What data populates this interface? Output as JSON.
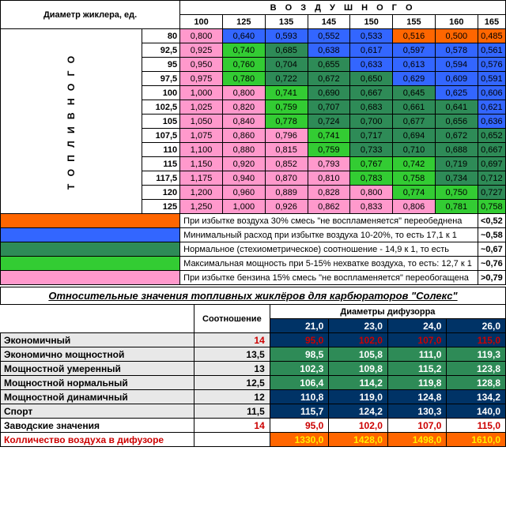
{
  "colors": {
    "orange": "#ff6600",
    "blue": "#3366ff",
    "teal": "#2e8b57",
    "green": "#33cc33",
    "pink": "#ff99cc",
    "dkblue": "#003366",
    "ltgray": "#e8e8e8",
    "red": "#cc0000",
    "white": "#ffffff"
  },
  "labels": {
    "corner": "Диаметр жиклера, ед.",
    "air": "В О З Д У Ш Н О Г О",
    "fuel": "Т О П Л И В Н О Г О"
  },
  "airCols": [
    "100",
    "125",
    "135",
    "145",
    "150",
    "155",
    "160",
    "165"
  ],
  "fuelRows": [
    "80",
    "92,5",
    "95",
    "97,5",
    "100",
    "102,5",
    "105",
    "107,5",
    "110",
    "115",
    "117,5",
    "120",
    "125"
  ],
  "cells": [
    {
      "r": 0,
      "c": 0,
      "v": "0,800",
      "k": "pink"
    },
    {
      "r": 0,
      "c": 1,
      "v": "0,640",
      "k": "blue"
    },
    {
      "r": 0,
      "c": 2,
      "v": "0,593",
      "k": "blue"
    },
    {
      "r": 0,
      "c": 3,
      "v": "0,552",
      "k": "blue"
    },
    {
      "r": 0,
      "c": 4,
      "v": "0,533",
      "k": "blue"
    },
    {
      "r": 0,
      "c": 5,
      "v": "0,516",
      "k": "orange"
    },
    {
      "r": 0,
      "c": 6,
      "v": "0,500",
      "k": "orange"
    },
    {
      "r": 0,
      "c": 7,
      "v": "0,485",
      "k": "orange"
    },
    {
      "r": 1,
      "c": 0,
      "v": "0,925",
      "k": "pink"
    },
    {
      "r": 1,
      "c": 1,
      "v": "0,740",
      "k": "green"
    },
    {
      "r": 1,
      "c": 2,
      "v": "0,685",
      "k": "teal"
    },
    {
      "r": 1,
      "c": 3,
      "v": "0,638",
      "k": "blue"
    },
    {
      "r": 1,
      "c": 4,
      "v": "0,617",
      "k": "blue"
    },
    {
      "r": 1,
      "c": 5,
      "v": "0,597",
      "k": "blue"
    },
    {
      "r": 1,
      "c": 6,
      "v": "0,578",
      "k": "blue"
    },
    {
      "r": 1,
      "c": 7,
      "v": "0,561",
      "k": "blue"
    },
    {
      "r": 2,
      "c": 0,
      "v": "0,950",
      "k": "pink"
    },
    {
      "r": 2,
      "c": 1,
      "v": "0,760",
      "k": "green"
    },
    {
      "r": 2,
      "c": 2,
      "v": "0,704",
      "k": "teal"
    },
    {
      "r": 2,
      "c": 3,
      "v": "0,655",
      "k": "teal"
    },
    {
      "r": 2,
      "c": 4,
      "v": "0,633",
      "k": "blue"
    },
    {
      "r": 2,
      "c": 5,
      "v": "0,613",
      "k": "blue"
    },
    {
      "r": 2,
      "c": 6,
      "v": "0,594",
      "k": "blue"
    },
    {
      "r": 2,
      "c": 7,
      "v": "0,576",
      "k": "blue"
    },
    {
      "r": 3,
      "c": 0,
      "v": "0,975",
      "k": "pink"
    },
    {
      "r": 3,
      "c": 1,
      "v": "0,780",
      "k": "green"
    },
    {
      "r": 3,
      "c": 2,
      "v": "0,722",
      "k": "teal"
    },
    {
      "r": 3,
      "c": 3,
      "v": "0,672",
      "k": "teal"
    },
    {
      "r": 3,
      "c": 4,
      "v": "0,650",
      "k": "teal"
    },
    {
      "r": 3,
      "c": 5,
      "v": "0,629",
      "k": "blue"
    },
    {
      "r": 3,
      "c": 6,
      "v": "0,609",
      "k": "blue"
    },
    {
      "r": 3,
      "c": 7,
      "v": "0,591",
      "k": "blue"
    },
    {
      "r": 4,
      "c": 0,
      "v": "1,000",
      "k": "pink"
    },
    {
      "r": 4,
      "c": 1,
      "v": "0,800",
      "k": "pink"
    },
    {
      "r": 4,
      "c": 2,
      "v": "0,741",
      "k": "green"
    },
    {
      "r": 4,
      "c": 3,
      "v": "0,690",
      "k": "teal"
    },
    {
      "r": 4,
      "c": 4,
      "v": "0,667",
      "k": "teal"
    },
    {
      "r": 4,
      "c": 5,
      "v": "0,645",
      "k": "teal"
    },
    {
      "r": 4,
      "c": 6,
      "v": "0,625",
      "k": "blue"
    },
    {
      "r": 4,
      "c": 7,
      "v": "0,606",
      "k": "blue"
    },
    {
      "r": 5,
      "c": 0,
      "v": "1,025",
      "k": "pink"
    },
    {
      "r": 5,
      "c": 1,
      "v": "0,820",
      "k": "pink"
    },
    {
      "r": 5,
      "c": 2,
      "v": "0,759",
      "k": "green"
    },
    {
      "r": 5,
      "c": 3,
      "v": "0,707",
      "k": "teal"
    },
    {
      "r": 5,
      "c": 4,
      "v": "0,683",
      "k": "teal"
    },
    {
      "r": 5,
      "c": 5,
      "v": "0,661",
      "k": "teal"
    },
    {
      "r": 5,
      "c": 6,
      "v": "0,641",
      "k": "teal"
    },
    {
      "r": 5,
      "c": 7,
      "v": "0,621",
      "k": "blue"
    },
    {
      "r": 6,
      "c": 0,
      "v": "1,050",
      "k": "pink"
    },
    {
      "r": 6,
      "c": 1,
      "v": "0,840",
      "k": "pink"
    },
    {
      "r": 6,
      "c": 2,
      "v": "0,778",
      "k": "green"
    },
    {
      "r": 6,
      "c": 3,
      "v": "0,724",
      "k": "teal"
    },
    {
      "r": 6,
      "c": 4,
      "v": "0,700",
      "k": "teal"
    },
    {
      "r": 6,
      "c": 5,
      "v": "0,677",
      "k": "teal"
    },
    {
      "r": 6,
      "c": 6,
      "v": "0,656",
      "k": "teal"
    },
    {
      "r": 6,
      "c": 7,
      "v": "0,636",
      "k": "blue"
    },
    {
      "r": 7,
      "c": 0,
      "v": "1,075",
      "k": "pink"
    },
    {
      "r": 7,
      "c": 1,
      "v": "0,860",
      "k": "pink"
    },
    {
      "r": 7,
      "c": 2,
      "v": "0,796",
      "k": "pink"
    },
    {
      "r": 7,
      "c": 3,
      "v": "0,741",
      "k": "green"
    },
    {
      "r": 7,
      "c": 4,
      "v": "0,717",
      "k": "teal"
    },
    {
      "r": 7,
      "c": 5,
      "v": "0,694",
      "k": "teal"
    },
    {
      "r": 7,
      "c": 6,
      "v": "0,672",
      "k": "teal"
    },
    {
      "r": 7,
      "c": 7,
      "v": "0,652",
      "k": "teal"
    },
    {
      "r": 8,
      "c": 0,
      "v": "1,100",
      "k": "pink"
    },
    {
      "r": 8,
      "c": 1,
      "v": "0,880",
      "k": "pink"
    },
    {
      "r": 8,
      "c": 2,
      "v": "0,815",
      "k": "pink"
    },
    {
      "r": 8,
      "c": 3,
      "v": "0,759",
      "k": "green"
    },
    {
      "r": 8,
      "c": 4,
      "v": "0,733",
      "k": "teal"
    },
    {
      "r": 8,
      "c": 5,
      "v": "0,710",
      "k": "teal"
    },
    {
      "r": 8,
      "c": 6,
      "v": "0,688",
      "k": "teal"
    },
    {
      "r": 8,
      "c": 7,
      "v": "0,667",
      "k": "teal"
    },
    {
      "r": 9,
      "c": 0,
      "v": "1,150",
      "k": "pink"
    },
    {
      "r": 9,
      "c": 1,
      "v": "0,920",
      "k": "pink"
    },
    {
      "r": 9,
      "c": 2,
      "v": "0,852",
      "k": "pink"
    },
    {
      "r": 9,
      "c": 3,
      "v": "0,793",
      "k": "pink"
    },
    {
      "r": 9,
      "c": 4,
      "v": "0,767",
      "k": "green"
    },
    {
      "r": 9,
      "c": 5,
      "v": "0,742",
      "k": "green"
    },
    {
      "r": 9,
      "c": 6,
      "v": "0,719",
      "k": "teal"
    },
    {
      "r": 9,
      "c": 7,
      "v": "0,697",
      "k": "teal"
    },
    {
      "r": 10,
      "c": 0,
      "v": "1,175",
      "k": "pink"
    },
    {
      "r": 10,
      "c": 1,
      "v": "0,940",
      "k": "pink"
    },
    {
      "r": 10,
      "c": 2,
      "v": "0,870",
      "k": "pink"
    },
    {
      "r": 10,
      "c": 3,
      "v": "0,810",
      "k": "pink"
    },
    {
      "r": 10,
      "c": 4,
      "v": "0,783",
      "k": "green"
    },
    {
      "r": 10,
      "c": 5,
      "v": "0,758",
      "k": "green"
    },
    {
      "r": 10,
      "c": 6,
      "v": "0,734",
      "k": "teal"
    },
    {
      "r": 10,
      "c": 7,
      "v": "0,712",
      "k": "teal"
    },
    {
      "r": 11,
      "c": 0,
      "v": "1,200",
      "k": "pink"
    },
    {
      "r": 11,
      "c": 1,
      "v": "0,960",
      "k": "pink"
    },
    {
      "r": 11,
      "c": 2,
      "v": "0,889",
      "k": "pink"
    },
    {
      "r": 11,
      "c": 3,
      "v": "0,828",
      "k": "pink"
    },
    {
      "r": 11,
      "c": 4,
      "v": "0,800",
      "k": "pink"
    },
    {
      "r": 11,
      "c": 5,
      "v": "0,774",
      "k": "green"
    },
    {
      "r": 11,
      "c": 6,
      "v": "0,750",
      "k": "green"
    },
    {
      "r": 11,
      "c": 7,
      "v": "0,727",
      "k": "teal"
    },
    {
      "r": 12,
      "c": 0,
      "v": "1,250",
      "k": "pink"
    },
    {
      "r": 12,
      "c": 1,
      "v": "1,000",
      "k": "pink"
    },
    {
      "r": 12,
      "c": 2,
      "v": "0,926",
      "k": "pink"
    },
    {
      "r": 12,
      "c": 3,
      "v": "0,862",
      "k": "pink"
    },
    {
      "r": 12,
      "c": 4,
      "v": "0,833",
      "k": "pink"
    },
    {
      "r": 12,
      "c": 5,
      "v": "0,806",
      "k": "pink"
    },
    {
      "r": 12,
      "c": 6,
      "v": "0,781",
      "k": "green"
    },
    {
      "r": 12,
      "c": 7,
      "v": "0,758",
      "k": "green"
    }
  ],
  "legend": [
    {
      "k": "orange",
      "t": "При избытке воздуха 30% смесь \"не воспламеняется\" переобеднена",
      "v": "<0,52"
    },
    {
      "k": "blue",
      "t": "Минимальный расход при избытке воздуха 10-20%, то есть 17,1 к 1",
      "v": "~0,58"
    },
    {
      "k": "teal",
      "t": "Нормальное (стехиометрическое) соотношение - 14,9 к 1, то есть",
      "v": "~0,67"
    },
    {
      "k": "green",
      "t": "Максимальная мощность при 5-15% нехватке воздуха, то есть: 12,7 к 1",
      "v": "~0,76"
    },
    {
      "k": "pink",
      "t": "При избытке бензина 15% смесь \"не воспламеняется\" переобогащена",
      "v": ">0,79"
    }
  ],
  "sec2": {
    "title": "Относительные значения топливных жиклёров для карбюраторов \"Солекс\"",
    "h1": "Соотношение",
    "h2": "Диаметры дифузорра",
    "diff": [
      "21,0",
      "23,0",
      "24,0",
      "26,0"
    ],
    "rows": [
      {
        "l": "Экономичный",
        "s": "14",
        "v": [
          "95,0",
          "102,0",
          "107,0",
          "115,0"
        ],
        "bg": "ltgray",
        "sc": "red",
        "vc": "red",
        "vbg": "dkblue"
      },
      {
        "l": "Экономично мощностной",
        "s": "13,5",
        "v": [
          "98,5",
          "105,8",
          "111,0",
          "119,3"
        ],
        "bg": "ltgray",
        "vbg": "teal"
      },
      {
        "l": "Мощностной умеренный",
        "s": "13",
        "v": [
          "102,3",
          "109,8",
          "115,2",
          "123,8"
        ],
        "bg": "ltgray",
        "vbg": "teal"
      },
      {
        "l": "Мощностной нормальный",
        "s": "12,5",
        "v": [
          "106,4",
          "114,2",
          "119,8",
          "128,8"
        ],
        "bg": "ltgray",
        "vbg": "teal"
      },
      {
        "l": "Мощностной динамичный",
        "s": "12",
        "v": [
          "110,8",
          "119,0",
          "124,8",
          "134,2"
        ],
        "bg": "ltgray",
        "vbg": "dkblue"
      },
      {
        "l": "Спорт",
        "s": "11,5",
        "v": [
          "115,7",
          "124,2",
          "130,3",
          "140,0"
        ],
        "bg": "ltgray",
        "vbg": "dkblue"
      },
      {
        "l": "Заводские значения",
        "s": "14",
        "v": [
          "95,0",
          "102,0",
          "107,0",
          "115,0"
        ],
        "bg": "white",
        "sc": "red",
        "vc": "red",
        "vbg": "white"
      },
      {
        "l": "Колличество воздуха в дифузоре",
        "s": "",
        "v": [
          "1330,0",
          "1428,0",
          "1498,0",
          "1610,0"
        ],
        "bg": "white",
        "lc": "red",
        "vbg": "orange",
        "vc": "yellowtxt"
      }
    ]
  }
}
